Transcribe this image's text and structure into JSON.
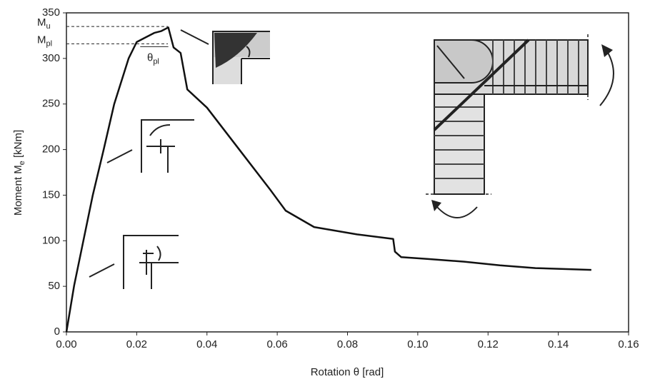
{
  "chart_data": {
    "type": "line",
    "x_label": {
      "text": "Rotation θ [rad]"
    },
    "y_label": {
      "text": "Moment M",
      "sub": "e",
      "tail": " [kNm]"
    },
    "xlim": [
      0,
      0.16
    ],
    "xticks": [
      {
        "value": 0,
        "label": "0.00"
      },
      {
        "value": 0.02,
        "label": "0.02"
      },
      {
        "value": 0.04,
        "label": "0.04"
      },
      {
        "value": 0.06,
        "label": "0.06"
      },
      {
        "value": 0.08,
        "label": "0.08"
      },
      {
        "value": 0.1,
        "label": "0.10"
      },
      {
        "value": 0.12,
        "label": "0.12"
      },
      {
        "value": 0.14,
        "label": "0.14"
      },
      {
        "value": 0.16,
        "label": "0.16"
      }
    ],
    "ylim": [
      0,
      350
    ],
    "yticks": [
      0,
      50,
      100,
      150,
      200,
      250,
      300,
      350
    ],
    "series": [
      {
        "color": "#111111",
        "x": [
          0,
          0.0022,
          0.0075,
          0.0106,
          0.0136,
          0.0177,
          0.02,
          0.022,
          0.025,
          0.027,
          0.029,
          0.0305,
          0.0325,
          0.0344,
          0.04,
          0.05,
          0.058,
          0.0624,
          0.0705,
          0.0827,
          0.093,
          0.0935,
          0.0953,
          0.103,
          0.1132,
          0.1234,
          0.1335,
          0.1494
        ],
        "values": [
          0,
          51,
          150,
          200,
          250,
          300,
          318,
          322,
          328,
          330,
          334,
          312,
          306,
          266,
          246,
          196,
          156,
          133,
          115,
          107,
          102,
          88,
          82,
          80,
          77,
          73,
          70,
          68
        ]
      }
    ],
    "annotations": [
      {
        "text": "M",
        "sub": "u",
        "y": 335
      },
      {
        "text": "M",
        "sub": "pl",
        "y": 316
      },
      {
        "text": "θ",
        "sub": "pl",
        "x": [
          0.021,
          0.029
        ]
      }
    ]
  }
}
